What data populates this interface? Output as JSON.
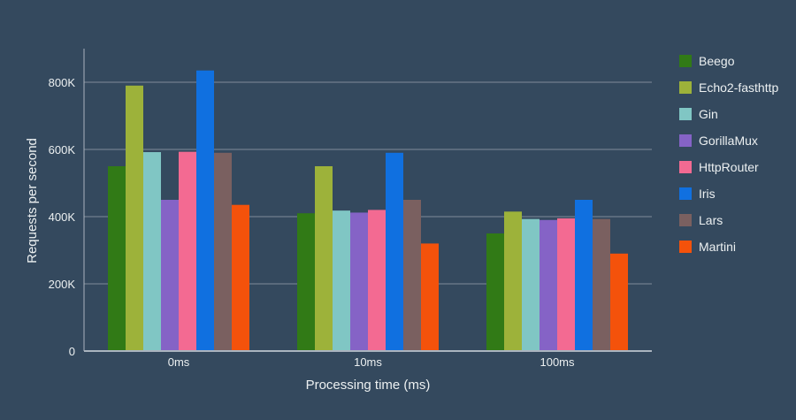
{
  "chart_data": {
    "type": "bar",
    "xlabel": "Processing time (ms)",
    "ylabel": "Requests per second",
    "categories": [
      "0ms",
      "10ms",
      "100ms"
    ],
    "ylim": [
      0,
      900000
    ],
    "yticks": [
      0,
      200000,
      400000,
      600000,
      800000
    ],
    "ytick_labels": [
      "0",
      "200K",
      "400K",
      "600K",
      "800K"
    ],
    "grid": true,
    "legend_position": "right",
    "series": [
      {
        "name": "Beego",
        "color": "#317a16",
        "values": [
          550000,
          410000,
          350000
        ]
      },
      {
        "name": "Echo2-fasthttp",
        "color": "#9db23a",
        "values": [
          790000,
          550000,
          415000
        ]
      },
      {
        "name": "Gin",
        "color": "#80c6c4",
        "values": [
          592000,
          418000,
          393000
        ]
      },
      {
        "name": "GorillaMux",
        "color": "#8563c6",
        "values": [
          450000,
          412000,
          390000
        ]
      },
      {
        "name": "HttpRouter",
        "color": "#f36a92",
        "values": [
          593000,
          420000,
          395000
        ]
      },
      {
        "name": "Iris",
        "color": "#1070e0",
        "values": [
          835000,
          590000,
          450000
        ]
      },
      {
        "name": "Lars",
        "color": "#7a6060",
        "values": [
          590000,
          450000,
          393000
        ]
      },
      {
        "name": "Martini",
        "color": "#f4520b",
        "values": [
          435000,
          320000,
          290000
        ]
      }
    ]
  }
}
